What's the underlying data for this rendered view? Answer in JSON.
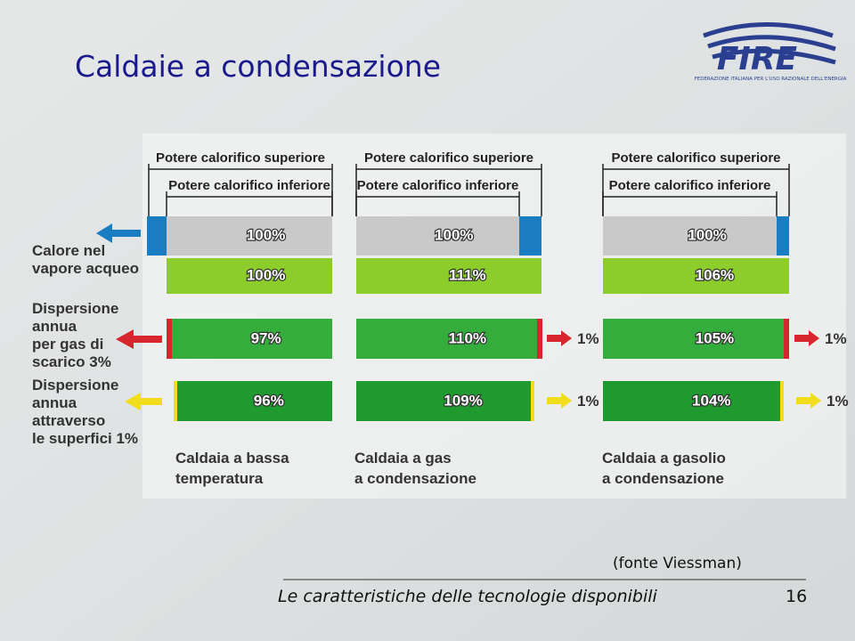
{
  "title": "Caldaie a condensazione",
  "logo": {
    "text": "FIRE",
    "subtitle": "FEDERAZIONE ITALIANA PER L'USO RAZIONALE DELL'ENERGIA"
  },
  "row_labels": [
    [
      "Calore nel",
      "vapore acqueo"
    ],
    [
      "Dispersione",
      "annua",
      "per gas di",
      "scarico 3%"
    ],
    [
      "Dispersione",
      "annua",
      "attraverso",
      "le superfici 1%"
    ]
  ],
  "columns": [
    {
      "bracket_top": "Potere calorifico superiore",
      "bracket_bottom": "Potere calorifico inferiore",
      "bars": [
        "100%",
        "100%",
        "97%",
        "96%"
      ],
      "losses": [],
      "caption": [
        "Caldaia a bassa",
        "temperatura"
      ]
    },
    {
      "bracket_top": "Potere calorifico superiore",
      "bracket_bottom": "Potere calorifico inferiore",
      "bars": [
        "100%",
        "111%",
        "110%",
        "109%"
      ],
      "losses": [
        "1%",
        "1%"
      ],
      "caption": [
        "Caldaia a gas",
        "a condensazione"
      ]
    },
    {
      "bracket_top": "Potere calorifico superiore",
      "bracket_bottom": "Potere calorifico inferiore",
      "bars": [
        "100%",
        "106%",
        "105%",
        "104%"
      ],
      "losses": [
        "1%",
        "1%"
      ],
      "caption": [
        "Caldaia a gasolio",
        "a condensazione"
      ]
    }
  ],
  "source": "(fonte Viessman)",
  "footer": "Le caratteristiche delle tecnologie disponibili",
  "page": "16"
}
